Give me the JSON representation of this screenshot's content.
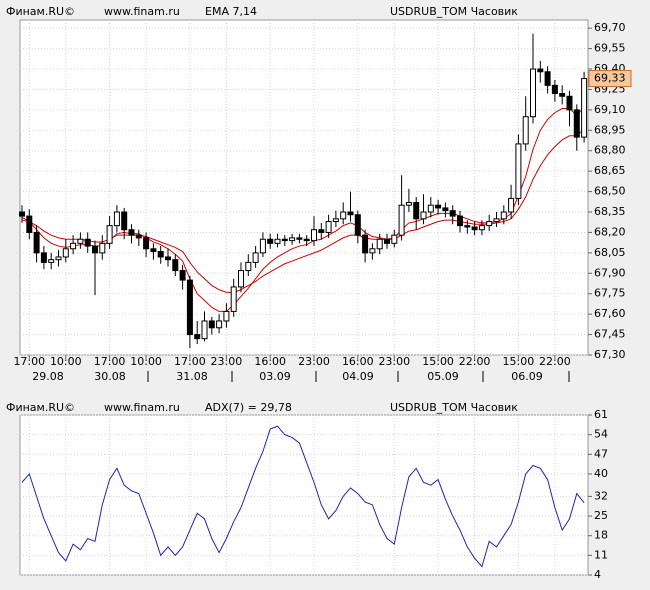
{
  "chart_data": [
    {
      "type": "candlestick",
      "source": "Финам.RU©",
      "site": "www.finam.ru",
      "indicator_label": "EMA 7,14",
      "indicator_color": "#e00000",
      "title": "USDRUB_TOM Часовик",
      "categories": [
        null,
        "17:00",
        null,
        null,
        null,
        null,
        "10:00",
        null,
        null,
        null,
        null,
        null,
        "17:00",
        null,
        null,
        null,
        null,
        "10:00",
        null,
        null,
        null,
        null,
        null,
        "17:00",
        null,
        null,
        null,
        null,
        "23:00",
        null,
        null,
        null,
        null,
        null,
        "16:00",
        null,
        null,
        null,
        null,
        null,
        "23:00",
        null,
        null,
        null,
        null,
        null,
        "16:00",
        null,
        null,
        null,
        null,
        "23:00",
        null,
        null,
        null,
        null,
        null,
        "15:00",
        null,
        null,
        null,
        null,
        "22:00",
        null,
        null,
        null,
        null,
        null,
        "15:00",
        null,
        null,
        null,
        null,
        "22:00",
        null,
        null,
        null,
        null
      ],
      "date_labels": [
        "29.08",
        "30.08",
        "31.08",
        "03.09",
        "04.09",
        "05.09",
        "06.09"
      ],
      "open": [
        68.35,
        68.32,
        68.2,
        68.05,
        67.98,
        68.0,
        68.02,
        68.08,
        68.12,
        68.15,
        68.1,
        68.05,
        68.12,
        68.25,
        68.35,
        68.22,
        68.18,
        68.16,
        68.08,
        68.06,
        68.02,
        68.0,
        67.92,
        67.85,
        67.45,
        67.42,
        67.55,
        67.5,
        67.55,
        67.62,
        67.8,
        67.92,
        67.98,
        68.05,
        68.15,
        68.12,
        68.15,
        68.14,
        68.16,
        68.15,
        68.14,
        68.22,
        68.2,
        68.28,
        68.3,
        68.35,
        68.33,
        68.18,
        68.05,
        68.08,
        68.15,
        68.12,
        68.18,
        68.4,
        68.42,
        68.3,
        68.35,
        68.4,
        68.38,
        68.36,
        68.32,
        68.25,
        68.24,
        68.22,
        68.25,
        68.28,
        68.3,
        68.35,
        68.45,
        68.85,
        69.05,
        69.4,
        69.38,
        69.28,
        69.22,
        69.2,
        69.1,
        68.9
      ],
      "high": [
        68.4,
        68.37,
        68.25,
        68.1,
        68.05,
        68.07,
        68.15,
        68.18,
        68.2,
        68.2,
        68.14,
        68.18,
        68.32,
        68.4,
        68.38,
        68.26,
        68.22,
        68.2,
        68.12,
        68.1,
        68.08,
        68.04,
        67.96,
        67.88,
        67.55,
        67.62,
        67.58,
        67.6,
        67.68,
        67.86,
        67.98,
        68.04,
        68.1,
        68.2,
        68.19,
        68.19,
        68.18,
        68.19,
        68.19,
        68.18,
        68.32,
        68.27,
        68.33,
        68.36,
        68.42,
        68.5,
        68.36,
        68.22,
        68.12,
        68.19,
        68.19,
        68.22,
        68.62,
        68.52,
        68.46,
        68.48,
        68.46,
        68.44,
        68.42,
        68.4,
        68.36,
        68.29,
        68.28,
        68.29,
        68.33,
        68.35,
        68.4,
        68.55,
        68.92,
        69.2,
        69.66,
        69.46,
        69.42,
        69.32,
        69.28,
        69.24,
        69.14,
        69.38
      ],
      "low": [
        68.27,
        68.15,
        67.98,
        67.93,
        67.93,
        67.95,
        67.98,
        68.04,
        68.08,
        68.05,
        67.74,
        68.0,
        68.08,
        68.2,
        68.15,
        68.12,
        68.1,
        68.02,
        68.0,
        67.97,
        67.95,
        67.88,
        67.78,
        67.35,
        67.38,
        67.4,
        67.45,
        67.46,
        67.5,
        67.58,
        67.76,
        67.88,
        67.94,
        68.02,
        68.08,
        68.09,
        68.1,
        68.11,
        68.12,
        68.1,
        68.1,
        68.15,
        68.16,
        68.24,
        68.26,
        68.28,
        68.12,
        67.98,
        68.0,
        68.04,
        68.08,
        68.09,
        68.14,
        68.35,
        68.22,
        68.26,
        68.31,
        68.33,
        68.31,
        68.26,
        68.2,
        68.19,
        68.18,
        68.18,
        68.21,
        68.24,
        68.26,
        68.3,
        68.4,
        68.8,
        69.0,
        69.3,
        69.22,
        69.16,
        69.14,
        68.98,
        68.8,
        68.86
      ],
      "close": [
        68.32,
        68.2,
        68.05,
        67.98,
        68.0,
        68.02,
        68.08,
        68.12,
        68.15,
        68.1,
        68.05,
        68.12,
        68.25,
        68.35,
        68.22,
        68.18,
        68.16,
        68.08,
        68.06,
        68.02,
        68.0,
        67.92,
        67.85,
        67.45,
        67.42,
        67.55,
        67.5,
        67.55,
        67.62,
        67.8,
        67.92,
        67.98,
        68.05,
        68.15,
        68.12,
        68.15,
        68.14,
        68.16,
        68.15,
        68.14,
        68.22,
        68.2,
        68.28,
        68.3,
        68.35,
        68.33,
        68.18,
        68.05,
        68.08,
        68.15,
        68.12,
        68.18,
        68.4,
        68.42,
        68.3,
        68.35,
        68.4,
        68.38,
        68.36,
        68.32,
        68.25,
        68.24,
        68.22,
        68.25,
        68.28,
        68.3,
        68.35,
        68.45,
        68.85,
        69.05,
        69.4,
        69.38,
        69.28,
        69.22,
        69.2,
        69.1,
        68.9,
        69.33
      ],
      "last_label": "69,33",
      "up_color": "#ffffff",
      "down_color": "#000000",
      "last_color": "#f9c79a",
      "series": [
        {
          "color": "#d40000",
          "values": [
            68.31,
            68.28,
            68.22,
            68.16,
            68.12,
            68.1,
            68.09,
            68.1,
            68.11,
            68.11,
            68.1,
            68.1,
            68.14,
            68.19,
            68.2,
            68.19,
            68.19,
            68.16,
            68.13,
            68.11,
            68.08,
            68.04,
            67.99,
            67.86,
            67.75,
            67.7,
            67.65,
            67.62,
            67.62,
            67.67,
            67.73,
            67.79,
            67.86,
            67.93,
            67.98,
            68.02,
            68.05,
            68.08,
            68.1,
            68.11,
            68.14,
            68.15,
            68.18,
            68.21,
            68.25,
            68.27,
            68.25,
            68.2,
            68.17,
            68.16,
            68.15,
            68.16,
            68.22,
            68.27,
            68.28,
            68.3,
            68.32,
            68.34,
            68.34,
            68.34,
            68.32,
            68.3,
            68.28,
            68.27,
            68.27,
            68.28,
            68.3,
            68.34,
            68.47,
            68.61,
            68.81,
            68.95,
            69.03,
            69.08,
            69.11,
            69.11,
            69.06,
            69.12
          ]
        },
        {
          "color": "#d40000",
          "values": [
            68.29,
            68.28,
            68.25,
            68.21,
            68.18,
            68.16,
            68.15,
            68.15,
            68.15,
            68.14,
            68.13,
            68.13,
            68.15,
            68.18,
            68.18,
            68.18,
            68.18,
            68.17,
            68.15,
            68.13,
            68.11,
            68.09,
            68.06,
            67.98,
            67.91,
            67.86,
            67.81,
            67.78,
            67.76,
            67.76,
            67.78,
            67.81,
            67.84,
            67.88,
            67.91,
            67.94,
            67.97,
            67.99,
            68.01,
            68.03,
            68.05,
            68.07,
            68.1,
            68.13,
            68.16,
            68.18,
            68.18,
            68.16,
            68.15,
            68.15,
            68.15,
            68.15,
            68.18,
            68.21,
            68.22,
            68.24,
            68.26,
            68.28,
            68.29,
            68.29,
            68.28,
            68.27,
            68.26,
            68.26,
            68.26,
            68.27,
            68.28,
            68.3,
            68.37,
            68.46,
            68.59,
            68.69,
            68.77,
            68.83,
            68.88,
            68.91,
            68.91,
            68.96
          ]
        }
      ],
      "ylim": [
        67.3,
        69.76
      ],
      "yticks": [
        {
          "value": 69.7,
          "label": "69,70"
        },
        {
          "value": 69.55,
          "label": "69,55"
        },
        {
          "value": 69.4,
          "label": "69,40"
        },
        {
          "value": 69.25,
          "label": "69,25"
        },
        {
          "value": 69.1,
          "label": "69,10"
        },
        {
          "value": 68.95,
          "label": "68,95"
        },
        {
          "value": 68.8,
          "label": "68,80"
        },
        {
          "value": 68.65,
          "label": "68,65"
        },
        {
          "value": 68.5,
          "label": "68,50"
        },
        {
          "value": 68.35,
          "label": "68,35"
        },
        {
          "value": 68.2,
          "label": "68,20"
        },
        {
          "value": 68.05,
          "label": "68,05"
        },
        {
          "value": 67.9,
          "label": "67,90"
        },
        {
          "value": 67.75,
          "label": "67,75"
        },
        {
          "value": 67.6,
          "label": "67,60"
        },
        {
          "value": 67.45,
          "label": "67,45"
        },
        {
          "value": 67.3,
          "label": "67,30"
        }
      ],
      "grid": true
    },
    {
      "type": "line",
      "source": "Финам.RU©",
      "site": "www.finam.ru",
      "indicator_label": "ADX(7) = 29,78",
      "indicator_color": "#2020c0",
      "title": "USDRUB_TOM Часовик",
      "series": [
        {
          "color": "#2222bb",
          "values": [
            37,
            40,
            32,
            24,
            18,
            12,
            9,
            15,
            13,
            17,
            16,
            29,
            38,
            42,
            36,
            34,
            33,
            26,
            19,
            11,
            14,
            11,
            14,
            20,
            26,
            24,
            17,
            12,
            17,
            23,
            28,
            35,
            42,
            48,
            56,
            57,
            54,
            53,
            51,
            44,
            37,
            29,
            24,
            27,
            32,
            35,
            33,
            30,
            29,
            22,
            17,
            15,
            28,
            39,
            42,
            37,
            36,
            38,
            31,
            25,
            20,
            14,
            10,
            7,
            16,
            14,
            18,
            22,
            30,
            40,
            43,
            42,
            38,
            28,
            20,
            24,
            33,
            29.78
          ]
        }
      ],
      "ylim": [
        4,
        61
      ],
      "yticks": [
        61,
        54,
        47,
        40,
        32,
        25,
        18,
        11,
        4
      ],
      "grid": true
    }
  ]
}
